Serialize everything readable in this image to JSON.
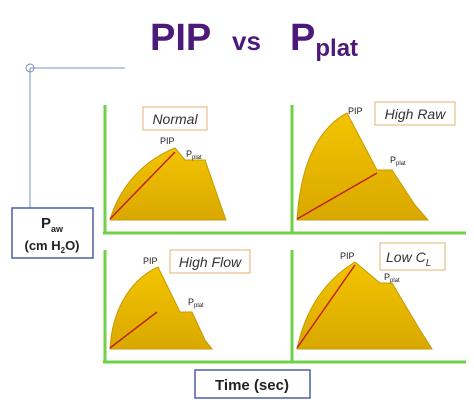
{
  "title": {
    "left": "PIP",
    "middle": "vs",
    "right": "P",
    "right_sub": "plat"
  },
  "y_label": {
    "main": "P",
    "main_sub": "aw",
    "unit": "(cm H",
    "unit_sub": "2",
    "unit_end": "O)"
  },
  "x_label": "Time (sec)",
  "panels": [
    {
      "label": "Normal",
      "peak": "PIP",
      "plateau": "P",
      "plateau_sub": "plat"
    },
    {
      "label": "High Raw",
      "peak": "PIP",
      "plateau": "P",
      "plateau_sub": "plat"
    },
    {
      "label": "High Flow",
      "peak": "PIP",
      "plateau": "P",
      "plateau_sub": "plat"
    },
    {
      "label": "Low C",
      "label_sub": "L",
      "peak": "PIP",
      "plateau": "P",
      "plateau_sub": "plat"
    }
  ]
}
